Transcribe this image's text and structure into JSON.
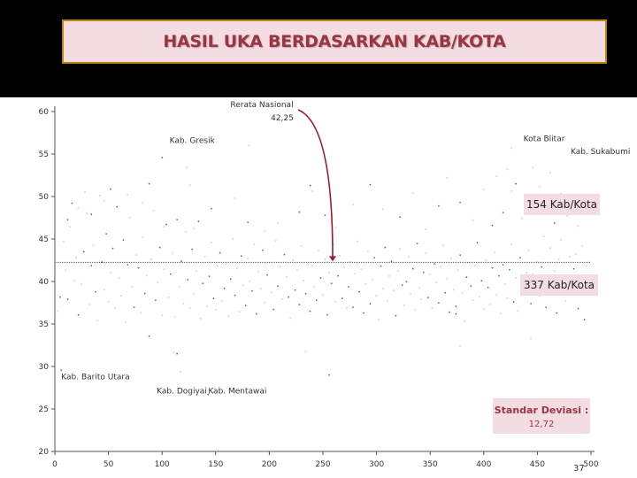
{
  "header": {
    "title": "HASIL UKA BERDASARKAN KAB/KOTA"
  },
  "chart_data": {
    "type": "scatter",
    "title": "HASIL UKA BERDASARKAN KAB/KOTA",
    "xlim": [
      0,
      500
    ],
    "ylim": [
      20,
      60
    ],
    "x_ticks": [
      0,
      50,
      100,
      150,
      200,
      250,
      300,
      350,
      400,
      450,
      500
    ],
    "y_ticks": [
      20,
      25,
      30,
      35,
      40,
      45,
      50,
      55,
      60
    ],
    "grid": false,
    "reference_line": {
      "value": 42.25,
      "label_line1": "Rerata Nasional",
      "label_line2": "42,25"
    },
    "annotations": [
      {
        "label": "Kab. Gresik",
        "x": 107,
        "y": 56.3
      },
      {
        "label": "Kota Blitar",
        "x": 437,
        "y": 56.5
      },
      {
        "label": "Kab. Sukabumi",
        "x": 481,
        "y": 55.0
      },
      {
        "label": "Kab. Barito Utara",
        "x": 6,
        "y": 28.5
      },
      {
        "label": "Kab.  Dogiyai",
        "x": 95,
        "y": 26.8
      },
      {
        "label": "Kab.  Mentawai",
        "x": 143,
        "y": 26.8
      }
    ],
    "summary": {
      "above_average_count": "154 Kab/Kota",
      "below_average_count": "337 Kab/Kota",
      "std_dev_label": "Standar Deviasi :",
      "std_dev_value": "12,72"
    },
    "series": [
      {
        "values": [
          [
            3,
            36.5
          ],
          [
            5,
            38.2
          ],
          [
            8,
            44.7
          ],
          [
            10,
            41.3
          ],
          [
            12,
            37.9
          ],
          [
            14,
            46.4
          ],
          [
            16,
            49.2
          ],
          [
            18,
            40.1
          ],
          [
            20,
            42.8
          ],
          [
            22,
            36.1
          ],
          [
            25,
            39.7
          ],
          [
            27,
            43.5
          ],
          [
            30,
            48.0
          ],
          [
            32,
            37.3
          ],
          [
            34,
            41.9
          ],
          [
            36,
            44.2
          ],
          [
            38,
            38.8
          ],
          [
            40,
            35.4
          ],
          [
            42,
            50.1
          ],
          [
            44,
            42.3
          ],
          [
            46,
            39.0
          ],
          [
            48,
            45.6
          ],
          [
            50,
            37.6
          ],
          [
            52,
            41.0
          ],
          [
            54,
            43.9
          ],
          [
            56,
            36.8
          ],
          [
            58,
            48.8
          ],
          [
            60,
            40.4
          ],
          [
            62,
            38.3
          ],
          [
            64,
            44.9
          ],
          [
            66,
            35.2
          ],
          [
            68,
            42.0
          ],
          [
            70,
            47.5
          ],
          [
            72,
            39.4
          ],
          [
            74,
            37.0
          ],
          [
            76,
            43.1
          ],
          [
            78,
            41.6
          ],
          [
            80,
            36.3
          ],
          [
            82,
            45.2
          ],
          [
            84,
            38.6
          ],
          [
            86,
            40.7
          ],
          [
            88,
            33.6
          ],
          [
            90,
            42.6
          ],
          [
            92,
            48.3
          ],
          [
            94,
            37.8
          ],
          [
            96,
            39.9
          ],
          [
            98,
            44.0
          ],
          [
            100,
            36.0
          ],
          [
            102,
            41.4
          ],
          [
            104,
            46.7
          ],
          [
            106,
            38.1
          ],
          [
            108,
            40.9
          ],
          [
            110,
            43.3
          ],
          [
            112,
            35.8
          ],
          [
            114,
            31.5
          ],
          [
            116,
            39.3
          ],
          [
            118,
            42.4
          ],
          [
            120,
            37.4
          ],
          [
            122,
            45.8
          ],
          [
            124,
            40.2
          ],
          [
            126,
            36.9
          ],
          [
            128,
            43.8
          ],
          [
            130,
            38.5
          ],
          [
            132,
            41.2
          ],
          [
            134,
            47.1
          ],
          [
            136,
            35.6
          ],
          [
            138,
            39.8
          ],
          [
            140,
            42.9
          ],
          [
            142,
            37.1
          ],
          [
            144,
            40.6
          ],
          [
            146,
            44.6
          ],
          [
            148,
            38.0
          ],
          [
            150,
            36.6
          ],
          [
            152,
            41.8
          ],
          [
            154,
            43.4
          ],
          [
            156,
            37.7
          ],
          [
            158,
            39.2
          ],
          [
            160,
            42.1
          ],
          [
            162,
            35.9
          ],
          [
            164,
            40.3
          ],
          [
            166,
            45.0
          ],
          [
            168,
            38.4
          ],
          [
            170,
            41.5
          ],
          [
            172,
            36.4
          ],
          [
            174,
            43.0
          ],
          [
            176,
            39.6
          ],
          [
            178,
            37.2
          ],
          [
            180,
            42.7
          ],
          [
            182,
            40.0
          ],
          [
            184,
            38.9
          ],
          [
            186,
            44.3
          ],
          [
            188,
            36.2
          ],
          [
            190,
            41.1
          ],
          [
            192,
            39.1
          ],
          [
            194,
            43.7
          ],
          [
            196,
            37.5
          ],
          [
            198,
            40.8
          ],
          [
            200,
            42.2
          ],
          [
            202,
            38.7
          ],
          [
            204,
            36.7
          ],
          [
            206,
            44.8
          ],
          [
            208,
            39.5
          ],
          [
            210,
            41.7
          ],
          [
            212,
            37.9
          ],
          [
            214,
            43.2
          ],
          [
            216,
            40.5
          ],
          [
            218,
            38.2
          ],
          [
            220,
            35.7
          ],
          [
            222,
            42.5
          ],
          [
            224,
            39.0
          ],
          [
            226,
            41.3
          ],
          [
            228,
            37.3
          ],
          [
            230,
            44.1
          ],
          [
            232,
            40.1
          ],
          [
            234,
            38.6
          ],
          [
            236,
            42.0
          ],
          [
            238,
            36.5
          ],
          [
            240,
            41.9
          ],
          [
            242,
            39.3
          ],
          [
            244,
            37.8
          ],
          [
            246,
            43.6
          ],
          [
            248,
            40.4
          ],
          [
            250,
            38.4
          ],
          [
            252,
            42.6
          ],
          [
            254,
            36.1
          ],
          [
            256,
            41.0
          ],
          [
            258,
            39.8
          ],
          [
            260,
            44.4
          ],
          [
            262,
            37.6
          ],
          [
            264,
            40.7
          ],
          [
            266,
            43.0
          ],
          [
            268,
            38.0
          ],
          [
            270,
            41.6
          ],
          [
            272,
            36.8
          ],
          [
            274,
            39.4
          ],
          [
            276,
            42.3
          ],
          [
            278,
            37.0
          ],
          [
            280,
            40.9
          ],
          [
            282,
            44.7
          ],
          [
            284,
            38.8
          ],
          [
            286,
            41.4
          ],
          [
            288,
            36.3
          ],
          [
            290,
            39.7
          ],
          [
            292,
            43.5
          ],
          [
            294,
            37.4
          ],
          [
            296,
            40.2
          ],
          [
            298,
            42.8
          ],
          [
            300,
            38.3
          ],
          [
            302,
            35.5
          ],
          [
            304,
            41.8
          ],
          [
            306,
            39.1
          ],
          [
            308,
            44.0
          ],
          [
            310,
            37.7
          ],
          [
            312,
            40.6
          ],
          [
            314,
            42.4
          ],
          [
            316,
            38.9
          ],
          [
            318,
            36.0
          ],
          [
            320,
            41.2
          ],
          [
            322,
            43.8
          ],
          [
            324,
            39.6
          ],
          [
            326,
            37.2
          ],
          [
            328,
            40.0
          ],
          [
            330,
            42.9
          ],
          [
            332,
            38.5
          ],
          [
            334,
            41.5
          ],
          [
            336,
            36.6
          ],
          [
            338,
            44.5
          ],
          [
            340,
            39.2
          ],
          [
            342,
            37.9
          ],
          [
            344,
            41.1
          ],
          [
            346,
            43.3
          ],
          [
            348,
            38.1
          ],
          [
            350,
            40.8
          ],
          [
            352,
            36.9
          ],
          [
            354,
            42.1
          ],
          [
            356,
            39.9
          ],
          [
            358,
            37.5
          ],
          [
            360,
            41.7
          ],
          [
            362,
            44.2
          ],
          [
            364,
            38.7
          ],
          [
            366,
            40.3
          ],
          [
            368,
            36.4
          ],
          [
            370,
            42.7
          ],
          [
            372,
            39.0
          ],
          [
            374,
            37.1
          ],
          [
            376,
            41.3
          ],
          [
            378,
            43.1
          ],
          [
            380,
            38.6
          ],
          [
            382,
            35.3
          ],
          [
            384,
            40.5
          ],
          [
            386,
            42.2
          ],
          [
            388,
            39.5
          ],
          [
            390,
            37.8
          ],
          [
            392,
            41.9
          ],
          [
            394,
            44.6
          ],
          [
            396,
            38.2
          ],
          [
            398,
            40.1
          ],
          [
            400,
            36.7
          ],
          [
            402,
            42.5
          ],
          [
            404,
            39.3
          ],
          [
            406,
            37.3
          ],
          [
            408,
            41.6
          ],
          [
            410,
            43.4
          ],
          [
            412,
            38.4
          ],
          [
            414,
            40.7
          ],
          [
            416,
            36.2
          ],
          [
            418,
            42.0
          ],
          [
            420,
            39.7
          ],
          [
            422,
            38.0
          ],
          [
            424,
            41.4
          ],
          [
            426,
            44.3
          ],
          [
            428,
            37.6
          ],
          [
            430,
            40.4
          ],
          [
            432,
            36.5
          ],
          [
            434,
            42.8
          ],
          [
            436,
            39.1
          ],
          [
            438,
            38.8
          ],
          [
            440,
            41.0
          ],
          [
            442,
            43.6
          ],
          [
            444,
            37.4
          ],
          [
            446,
            40.9
          ],
          [
            448,
            39.4
          ],
          [
            450,
            42.3
          ],
          [
            452,
            38.3
          ],
          [
            454,
            41.7
          ],
          [
            456,
            45.3
          ],
          [
            458,
            37.0
          ],
          [
            460,
            40.0
          ],
          [
            462,
            43.9
          ],
          [
            464,
            38.5
          ],
          [
            466,
            41.2
          ],
          [
            468,
            36.3
          ],
          [
            470,
            42.6
          ],
          [
            472,
            44.9
          ],
          [
            474,
            39.8
          ],
          [
            476,
            37.7
          ],
          [
            478,
            40.6
          ],
          [
            480,
            42.9
          ],
          [
            482,
            38.9
          ],
          [
            484,
            41.5
          ],
          [
            486,
            43.2
          ],
          [
            488,
            36.8
          ],
          [
            490,
            39.2
          ],
          [
            492,
            44.1
          ],
          [
            494,
            35.5
          ],
          [
            496,
            41.8
          ],
          [
            12,
            47.3
          ],
          [
            22,
            48.6
          ],
          [
            28,
            50.5
          ],
          [
            34,
            47.9
          ],
          [
            46,
            49.5
          ],
          [
            52,
            50.9
          ],
          [
            68,
            50.2
          ],
          [
            82,
            49.2
          ],
          [
            88,
            51.5
          ],
          [
            102,
            46.4
          ],
          [
            114,
            47.3
          ],
          [
            126,
            51.3
          ],
          [
            130,
            46.2
          ],
          [
            146,
            48.6
          ],
          [
            168,
            49.8
          ],
          [
            180,
            47.0
          ],
          [
            196,
            45.9
          ],
          [
            208,
            46.8
          ],
          [
            228,
            48.2
          ],
          [
            240,
            50.6
          ],
          [
            252,
            47.8
          ],
          [
            262,
            46.3
          ],
          [
            278,
            49.0
          ],
          [
            294,
            51.4
          ],
          [
            306,
            48.5
          ],
          [
            322,
            47.6
          ],
          [
            334,
            50.4
          ],
          [
            346,
            46.1
          ],
          [
            358,
            48.9
          ],
          [
            366,
            52.2
          ],
          [
            378,
            49.3
          ],
          [
            390,
            47.2
          ],
          [
            400,
            50.8
          ],
          [
            408,
            46.6
          ],
          [
            412,
            52.4
          ],
          [
            418,
            48.1
          ],
          [
            422,
            53.2
          ],
          [
            426,
            50.6
          ],
          [
            430,
            51.5
          ],
          [
            436,
            47.4
          ],
          [
            440,
            49.9
          ],
          [
            446,
            53.4
          ],
          [
            452,
            51.1
          ],
          [
            458,
            48.4
          ],
          [
            462,
            52.8
          ],
          [
            466,
            46.9
          ],
          [
            472,
            50.3
          ],
          [
            478,
            47.7
          ],
          [
            484,
            48.7
          ],
          [
            488,
            46.5
          ],
          [
            100,
            54.6
          ],
          [
            123,
            53.4
          ],
          [
            181,
            56.0
          ],
          [
            238,
            51.3
          ],
          [
            426,
            55.7
          ],
          [
            6,
            29.6
          ],
          [
            111,
            31.6
          ],
          [
            117,
            29.4
          ],
          [
            143,
            26.7
          ],
          [
            234,
            31.7
          ],
          [
            256,
            29.0
          ],
          [
            378,
            32.4
          ],
          [
            444,
            33.3
          ],
          [
            374,
            36.2
          ]
        ]
      }
    ]
  }
}
